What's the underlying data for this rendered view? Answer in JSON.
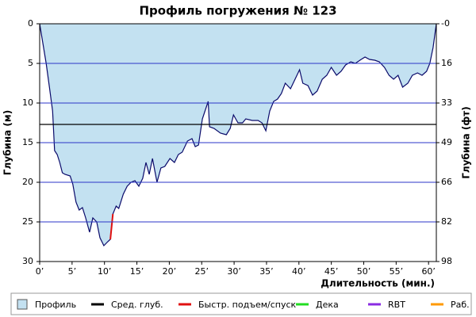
{
  "chart_data": {
    "type": "area",
    "title": "Профиль погружения № 123",
    "x_label": "Длительность (мин.)",
    "y_label": "Глубина (м)",
    "y2_label": "Глубина (фт)",
    "y_inverted": true,
    "xlim": [
      0,
      61.2
    ],
    "ylim": [
      0,
      30
    ],
    "y2lim": [
      0,
      98.4
    ],
    "xticks": [
      {
        "value": 0,
        "label": "0’"
      },
      {
        "value": 5,
        "label": "5’"
      },
      {
        "value": 10,
        "label": "10’"
      },
      {
        "value": 15,
        "label": "15’"
      },
      {
        "value": 20,
        "label": "20’"
      },
      {
        "value": 25,
        "label": "25’"
      },
      {
        "value": 30,
        "label": "30’"
      },
      {
        "value": 35,
        "label": "35’"
      },
      {
        "value": 40,
        "label": "40’"
      },
      {
        "value": 45,
        "label": "45’"
      },
      {
        "value": 50,
        "label": "50’"
      },
      {
        "value": 55,
        "label": "55’"
      },
      {
        "value": 60,
        "label": "60’"
      }
    ],
    "yticks": [
      0,
      5,
      10,
      15,
      20,
      25,
      30
    ],
    "y2ticks": [
      {
        "value": 0,
        "label": "-0"
      },
      {
        "value": 16.4,
        "label": "16"
      },
      {
        "value": 32.8,
        "label": "33"
      },
      {
        "value": 49.2,
        "label": "49"
      },
      {
        "value": 65.6,
        "label": "66"
      },
      {
        "value": 82,
        "label": "82"
      },
      {
        "value": 98.4,
        "label": "98"
      }
    ],
    "grid": true,
    "grid_color": "#2b35c8",
    "average_depth": 12.7,
    "series": [
      {
        "name": "Профиль",
        "color": "#c3e1f1",
        "line_color": "#0a0a6a",
        "x": [
          0,
          0.5,
          1,
          1.5,
          2,
          2.3,
          2.7,
          3.1,
          3.5,
          3.9,
          4.7,
          5.1,
          5.6,
          6.1,
          6.6,
          7.1,
          7.7,
          8.2,
          8.8,
          9.3,
          9.9,
          10.5,
          10.9,
          11.3,
          11.8,
          12.2,
          12.9,
          13.5,
          14.1,
          14.7,
          15.3,
          15.9,
          16.4,
          16.9,
          17.4,
          18.1,
          18.7,
          19.3,
          20.1,
          20.8,
          21.4,
          22,
          22.8,
          23.5,
          24,
          24.5,
          25.1,
          26,
          26.2,
          26.9,
          27.9,
          28.8,
          29.4,
          29.9,
          30.6,
          31.3,
          31.8,
          32.8,
          33.7,
          34.3,
          34.9,
          35.5,
          36.1,
          36.7,
          37.3,
          37.9,
          38.7,
          39.4,
          40.1,
          40.6,
          41.4,
          42.1,
          42.8,
          43.6,
          44.3,
          45,
          45.8,
          46.5,
          47.2,
          48,
          48.7,
          49.6,
          50.2,
          50.9,
          51.7,
          52.4,
          53.2,
          53.9,
          54.6,
          55.3,
          56,
          56.8,
          57.5,
          58.3,
          59,
          59.7,
          60.2,
          60.7,
          61.2
        ],
        "values": [
          0,
          2.5,
          5,
          8,
          11,
          16,
          16.5,
          17.5,
          18.8,
          19,
          19.2,
          20.2,
          22.5,
          23.5,
          23.2,
          24.5,
          26.3,
          24.5,
          25,
          27,
          28,
          27.5,
          27.2,
          24,
          23,
          23.3,
          21.5,
          20.5,
          20,
          19.8,
          20.5,
          19.5,
          17.5,
          19,
          17,
          20,
          18.2,
          18,
          17,
          17.5,
          16.5,
          16.2,
          14.8,
          14.5,
          15.5,
          15.3,
          12,
          9.8,
          13,
          13.2,
          13.8,
          14,
          13.2,
          11.5,
          12.5,
          12.5,
          12,
          12.2,
          12.2,
          12.5,
          13.5,
          11,
          9.8,
          9.5,
          8.8,
          7.5,
          8.2,
          7,
          5.8,
          7.5,
          7.8,
          9,
          8.5,
          7,
          6.5,
          5.5,
          6.5,
          6,
          5.2,
          4.8,
          5,
          4.5,
          4.2,
          4.5,
          4.6,
          4.8,
          5.5,
          6.5,
          7,
          6.5,
          8,
          7.5,
          6.5,
          6.2,
          6.5,
          6,
          5,
          3,
          0
        ]
      },
      {
        "name": "Быстр. подъем/спуск",
        "color": "#e01010",
        "x": [
          10.9,
          11.3
        ],
        "values": [
          27.2,
          24
        ]
      }
    ],
    "legend": [
      {
        "name": "Профиль",
        "color": "#c3e1f1",
        "kind": "box"
      },
      {
        "name": "Сред. глуб.",
        "color": "#000000",
        "kind": "line"
      },
      {
        "name": "Быстр. подъем/спуск",
        "color": "#e01010",
        "kind": "line"
      },
      {
        "name": "Дека",
        "color": "#22dd22",
        "kind": "line"
      },
      {
        "name": "RBT",
        "color": "#8a2be2",
        "kind": "line"
      },
      {
        "name": "Раб.",
        "color": "#ff9900",
        "kind": "line"
      }
    ]
  }
}
